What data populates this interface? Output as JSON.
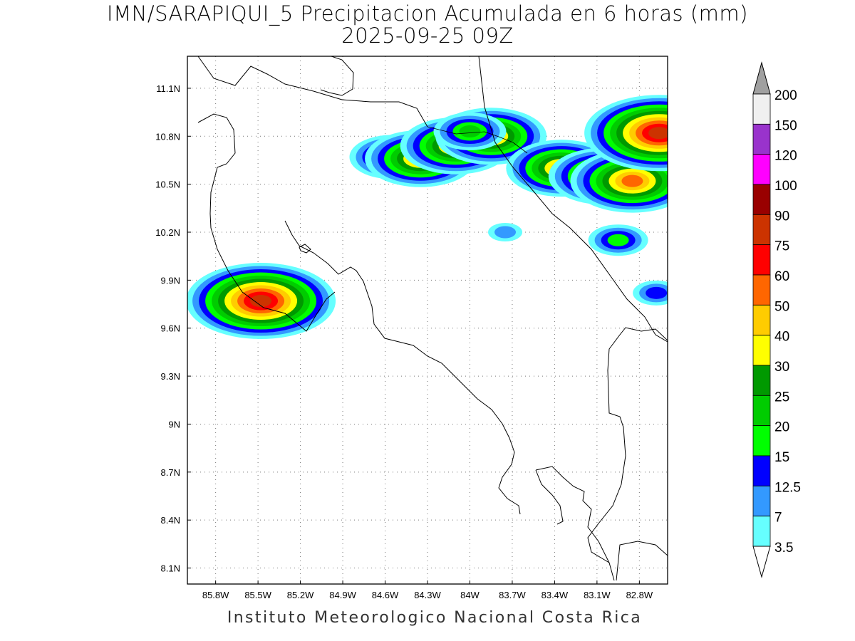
{
  "title": "IMN/SARAPIQUI_5 Precipitacion Acumulada en 6 horas (mm)",
  "subtitle": "2025-09-25 09Z",
  "footer": "Instituto Meteorologico Nacional Costa Rica",
  "map": {
    "lon_range": [
      -86.0,
      -82.6
    ],
    "lat_range": [
      8.0,
      11.3
    ],
    "lon_ticks": [
      "85.8W",
      "85.5W",
      "85.2W",
      "84.9W",
      "84.6W",
      "84.3W",
      "84W",
      "83.7W",
      "83.4W",
      "83.1W",
      "82.8W"
    ],
    "lon_tick_values": [
      -85.8,
      -85.5,
      -85.2,
      -84.9,
      -84.6,
      -84.3,
      -84.0,
      -83.7,
      -83.4,
      -83.1,
      -82.8
    ],
    "lat_ticks": [
      "11.1N",
      "10.8N",
      "10.5N",
      "10.2N",
      "9.9N",
      "9.6N",
      "9.3N",
      "9N",
      "8.7N",
      "8.4N",
      "8.1N"
    ],
    "lat_tick_values": [
      11.1,
      10.8,
      10.5,
      10.2,
      9.9,
      9.6,
      9.3,
      9.0,
      8.7,
      8.4,
      8.1
    ],
    "grid": "dotted",
    "units": "mm"
  },
  "legend": {
    "placement": "right",
    "levels": [
      "200",
      "150",
      "120",
      "100",
      "90",
      "75",
      "60",
      "50",
      "40",
      "30",
      "25",
      "20",
      "15",
      "12.5",
      "7",
      "3.5"
    ],
    "colors": [
      "#f0f0f0",
      "#9933cc",
      "#ff00ff",
      "#990000",
      "#cc3300",
      "#ff0000",
      "#ff6600",
      "#ffcc00",
      "#ffff00",
      "#009900",
      "#00cc00",
      "#00ff00",
      "#0000ff",
      "#3399ff",
      "#66ffff"
    ],
    "over_color": "#a0a0a0",
    "under_color": "#ffffff"
  },
  "precip_cells": [
    {
      "lon": -84.55,
      "lat": 10.67,
      "mm": 25
    },
    {
      "lon": -84.35,
      "lat": 10.66,
      "mm": 40
    },
    {
      "lon": -84.1,
      "lat": 10.74,
      "mm": 40
    },
    {
      "lon": -83.85,
      "lat": 10.8,
      "mm": 40
    },
    {
      "lon": -84.0,
      "lat": 10.83,
      "mm": 20
    },
    {
      "lon": -83.35,
      "lat": 10.6,
      "mm": 40
    },
    {
      "lon": -83.05,
      "lat": 10.55,
      "mm": 40
    },
    {
      "lon": -82.85,
      "lat": 10.52,
      "mm": 50
    },
    {
      "lon": -82.66,
      "lat": 10.82,
      "mm": 75
    },
    {
      "lon": -82.95,
      "lat": 10.15,
      "mm": 15
    },
    {
      "lon": -85.48,
      "lat": 9.77,
      "mm": 75
    },
    {
      "lon": -82.68,
      "lat": 9.82,
      "mm": 12.5
    },
    {
      "lon": -83.75,
      "lat": 10.2,
      "mm": 7
    }
  ]
}
